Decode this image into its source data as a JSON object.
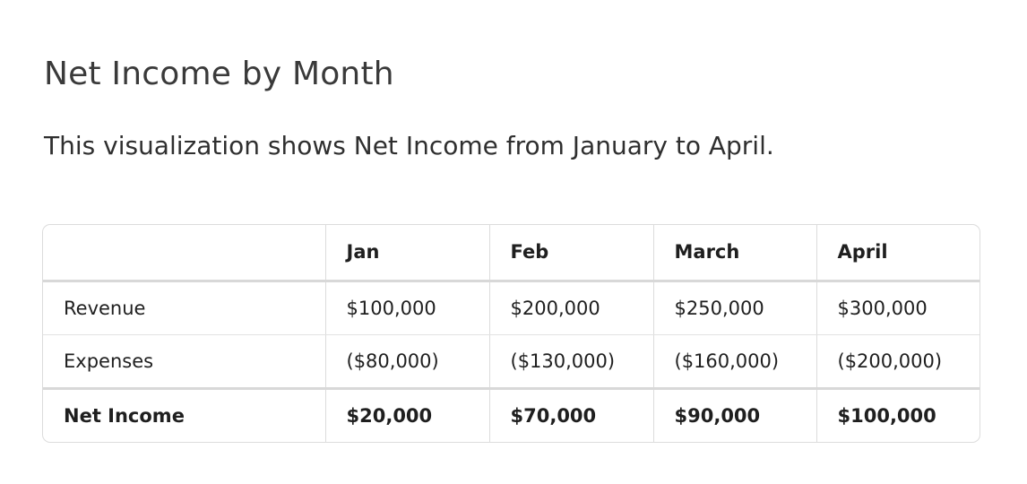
{
  "page": {
    "title": "Net Income by Month",
    "description": "This visualization shows Net Income from January to April."
  },
  "table": {
    "columns": [
      "",
      "Jan",
      "Feb",
      "March",
      "April"
    ],
    "rows": [
      {
        "label": "Revenue",
        "values": [
          "$100,000",
          "$200,000",
          "$250,000",
          "$300,000"
        ]
      },
      {
        "label": "Expenses",
        "values": [
          "($80,000)",
          "($130,000)",
          "($160,000)",
          "($200,000)"
        ]
      },
      {
        "label": "Net Income",
        "values": [
          "$20,000",
          "$70,000",
          "$90,000",
          "$100,000"
        ]
      }
    ]
  }
}
